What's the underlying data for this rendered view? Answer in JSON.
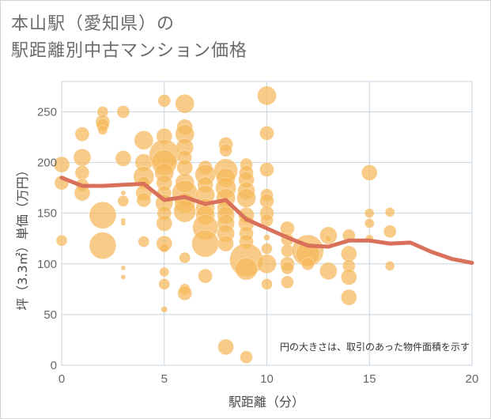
{
  "title_line1": "本山駅（愛知県）の",
  "title_line2": "駅距離別中古マンション価格",
  "chart_data": {
    "type": "scatter",
    "xlabel": "駅距離（分）",
    "ylabel": "坪（3.3㎡）単価（万円）",
    "xlim": [
      0,
      20
    ],
    "ylim": [
      0,
      280
    ],
    "xticks": [
      0,
      5,
      10,
      15,
      20
    ],
    "yticks": [
      0,
      50,
      100,
      150,
      200,
      250
    ],
    "grid": true,
    "note": "円の大きさは、取引のあった物件面積を示す",
    "colors": {
      "bubble": "#f5b95a",
      "line": "#d9705a",
      "grid": "#c8d6e0"
    },
    "points": [
      {
        "x": 0,
        "y": 198,
        "s": 10
      },
      {
        "x": 0,
        "y": 180,
        "s": 9
      },
      {
        "x": 0,
        "y": 123,
        "s": 7
      },
      {
        "x": 1,
        "y": 228,
        "s": 9
      },
      {
        "x": 1,
        "y": 205,
        "s": 11
      },
      {
        "x": 1,
        "y": 190,
        "s": 9
      },
      {
        "x": 1,
        "y": 178,
        "s": 8
      },
      {
        "x": 1,
        "y": 170,
        "s": 10
      },
      {
        "x": 2,
        "y": 250,
        "s": 7
      },
      {
        "x": 2,
        "y": 240,
        "s": 9
      },
      {
        "x": 2,
        "y": 237,
        "s": 8
      },
      {
        "x": 2,
        "y": 232,
        "s": 6
      },
      {
        "x": 2,
        "y": 148,
        "s": 17
      },
      {
        "x": 2,
        "y": 118,
        "s": 17
      },
      {
        "x": 3,
        "y": 250,
        "s": 8
      },
      {
        "x": 3,
        "y": 204,
        "s": 10
      },
      {
        "x": 3,
        "y": 170,
        "s": 3
      },
      {
        "x": 3,
        "y": 162,
        "s": 7
      },
      {
        "x": 3,
        "y": 143,
        "s": 3
      },
      {
        "x": 3,
        "y": 140,
        "s": 3
      },
      {
        "x": 3,
        "y": 96,
        "s": 3
      },
      {
        "x": 3,
        "y": 87,
        "s": 3
      },
      {
        "x": 4,
        "y": 222,
        "s": 12
      },
      {
        "x": 4,
        "y": 200,
        "s": 11
      },
      {
        "x": 4,
        "y": 186,
        "s": 13
      },
      {
        "x": 4,
        "y": 180,
        "s": 8
      },
      {
        "x": 4,
        "y": 170,
        "s": 10
      },
      {
        "x": 4,
        "y": 163,
        "s": 9
      },
      {
        "x": 4,
        "y": 122,
        "s": 7
      },
      {
        "x": 5,
        "y": 261,
        "s": 8
      },
      {
        "x": 5,
        "y": 226,
        "s": 10
      },
      {
        "x": 5,
        "y": 208,
        "s": 19
      },
      {
        "x": 5,
        "y": 200,
        "s": 16
      },
      {
        "x": 5,
        "y": 190,
        "s": 12
      },
      {
        "x": 5,
        "y": 180,
        "s": 10
      },
      {
        "x": 5,
        "y": 170,
        "s": 9
      },
      {
        "x": 5,
        "y": 160,
        "s": 11
      },
      {
        "x": 5,
        "y": 150,
        "s": 9
      },
      {
        "x": 5,
        "y": 140,
        "s": 10
      },
      {
        "x": 5,
        "y": 120,
        "s": 10
      },
      {
        "x": 5,
        "y": 116,
        "s": 6
      },
      {
        "x": 5,
        "y": 92,
        "s": 6
      },
      {
        "x": 5,
        "y": 80,
        "s": 7
      },
      {
        "x": 5,
        "y": 55,
        "s": 4
      },
      {
        "x": 6,
        "y": 258,
        "s": 12
      },
      {
        "x": 6,
        "y": 235,
        "s": 10
      },
      {
        "x": 6,
        "y": 228,
        "s": 12
      },
      {
        "x": 6,
        "y": 215,
        "s": 11
      },
      {
        "x": 6,
        "y": 205,
        "s": 9
      },
      {
        "x": 6,
        "y": 195,
        "s": 10
      },
      {
        "x": 6,
        "y": 180,
        "s": 12
      },
      {
        "x": 6,
        "y": 170,
        "s": 16
      },
      {
        "x": 6,
        "y": 160,
        "s": 13
      },
      {
        "x": 6,
        "y": 152,
        "s": 14
      },
      {
        "x": 6,
        "y": 106,
        "s": 7
      },
      {
        "x": 6,
        "y": 75,
        "s": 7
      },
      {
        "x": 6,
        "y": 71,
        "s": 9
      },
      {
        "x": 7,
        "y": 195,
        "s": 9
      },
      {
        "x": 7,
        "y": 188,
        "s": 13
      },
      {
        "x": 7,
        "y": 178,
        "s": 10
      },
      {
        "x": 7,
        "y": 168,
        "s": 12
      },
      {
        "x": 7,
        "y": 155,
        "s": 12
      },
      {
        "x": 7,
        "y": 148,
        "s": 12
      },
      {
        "x": 7,
        "y": 136,
        "s": 16
      },
      {
        "x": 7,
        "y": 120,
        "s": 17
      },
      {
        "x": 7,
        "y": 88,
        "s": 9
      },
      {
        "x": 8,
        "y": 218,
        "s": 9
      },
      {
        "x": 8,
        "y": 212,
        "s": 8
      },
      {
        "x": 8,
        "y": 192,
        "s": 15
      },
      {
        "x": 8,
        "y": 185,
        "s": 12
      },
      {
        "x": 8,
        "y": 175,
        "s": 13
      },
      {
        "x": 8,
        "y": 165,
        "s": 12
      },
      {
        "x": 8,
        "y": 155,
        "s": 11
      },
      {
        "x": 8,
        "y": 148,
        "s": 11
      },
      {
        "x": 8,
        "y": 140,
        "s": 11
      },
      {
        "x": 8,
        "y": 130,
        "s": 11
      },
      {
        "x": 8,
        "y": 120,
        "s": 10
      },
      {
        "x": 8,
        "y": 18,
        "s": 10
      },
      {
        "x": 9,
        "y": 198,
        "s": 8
      },
      {
        "x": 9,
        "y": 190,
        "s": 9
      },
      {
        "x": 9,
        "y": 183,
        "s": 10
      },
      {
        "x": 9,
        "y": 172,
        "s": 11
      },
      {
        "x": 9,
        "y": 165,
        "s": 12
      },
      {
        "x": 9,
        "y": 148,
        "s": 10
      },
      {
        "x": 9,
        "y": 140,
        "s": 10
      },
      {
        "x": 9,
        "y": 130,
        "s": 9
      },
      {
        "x": 9,
        "y": 122,
        "s": 9
      },
      {
        "x": 9,
        "y": 104,
        "s": 21
      },
      {
        "x": 9,
        "y": 95,
        "s": 14
      },
      {
        "x": 9,
        "y": 8,
        "s": 8
      },
      {
        "x": 10,
        "y": 266,
        "s": 12
      },
      {
        "x": 10,
        "y": 229,
        "s": 9
      },
      {
        "x": 10,
        "y": 193,
        "s": 9
      },
      {
        "x": 10,
        "y": 168,
        "s": 8
      },
      {
        "x": 10,
        "y": 162,
        "s": 9
      },
      {
        "x": 10,
        "y": 150,
        "s": 9
      },
      {
        "x": 10,
        "y": 143,
        "s": 8
      },
      {
        "x": 10,
        "y": 126,
        "s": 4
      },
      {
        "x": 10,
        "y": 115,
        "s": 7
      },
      {
        "x": 10,
        "y": 100,
        "s": 12
      },
      {
        "x": 10,
        "y": 80,
        "s": 7
      },
      {
        "x": 11,
        "y": 135,
        "s": 9
      },
      {
        "x": 11,
        "y": 124,
        "s": 8
      },
      {
        "x": 11,
        "y": 113,
        "s": 8
      },
      {
        "x": 11,
        "y": 100,
        "s": 9
      },
      {
        "x": 11,
        "y": 96,
        "s": 8
      },
      {
        "x": 11,
        "y": 82,
        "s": 8
      },
      {
        "x": 12,
        "y": 113,
        "s": 20
      },
      {
        "x": 12,
        "y": 110,
        "s": 15
      },
      {
        "x": 12,
        "y": 100,
        "s": 8
      },
      {
        "x": 13,
        "y": 128,
        "s": 11
      },
      {
        "x": 13,
        "y": 125,
        "s": 4
      },
      {
        "x": 13,
        "y": 93,
        "s": 11
      },
      {
        "x": 14,
        "y": 128,
        "s": 8
      },
      {
        "x": 14,
        "y": 110,
        "s": 10
      },
      {
        "x": 14,
        "y": 98,
        "s": 8
      },
      {
        "x": 14,
        "y": 87,
        "s": 10
      },
      {
        "x": 14,
        "y": 67,
        "s": 10
      },
      {
        "x": 15,
        "y": 190,
        "s": 10
      },
      {
        "x": 15,
        "y": 150,
        "s": 6
      },
      {
        "x": 15,
        "y": 140,
        "s": 6
      },
      {
        "x": 15,
        "y": 125,
        "s": 5
      },
      {
        "x": 16,
        "y": 151,
        "s": 6
      },
      {
        "x": 16,
        "y": 132,
        "s": 8
      },
      {
        "x": 16,
        "y": 98,
        "s": 6
      }
    ],
    "trend": {
      "x": [
        0,
        1,
        2,
        3,
        4,
        5,
        6,
        7,
        8,
        9,
        10,
        11,
        12,
        13,
        14,
        15,
        16,
        17,
        18,
        19,
        20
      ],
      "y": [
        185,
        177,
        177,
        178,
        179,
        163,
        166,
        159,
        163,
        144,
        135,
        126,
        118,
        117,
        123,
        123,
        120,
        121,
        112,
        105,
        101
      ]
    }
  }
}
